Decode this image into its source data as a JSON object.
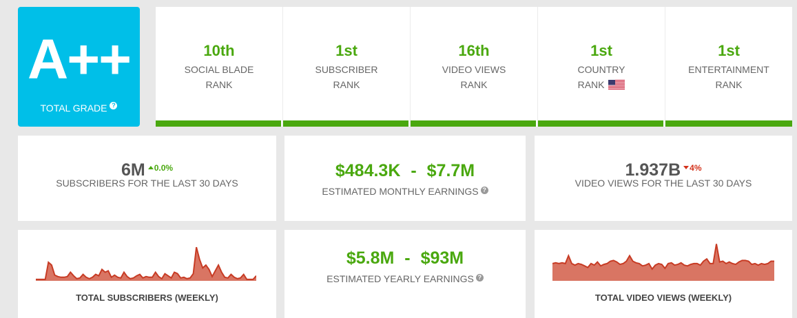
{
  "grade": {
    "value": "A++",
    "label": "TOTAL GRADE",
    "help_glyph": "?"
  },
  "ranks": [
    {
      "value": "10th",
      "line1": "SOCIAL BLADE",
      "line2": "RANK"
    },
    {
      "value": "1st",
      "line1": "SUBSCRIBER",
      "line2": "RANK"
    },
    {
      "value": "16th",
      "line1": "VIDEO VIEWS",
      "line2": "RANK"
    },
    {
      "value": "1st",
      "line1": "COUNTRY",
      "line2": "RANK",
      "flag_icon": "us-flag-icon"
    },
    {
      "value": "1st",
      "line1": "ENTERTAINMENT",
      "line2": "RANK"
    }
  ],
  "subscribers_30d": {
    "value": "6M",
    "change": "0.0%",
    "direction": "up",
    "label": "SUBSCRIBERS FOR THE LAST 30 DAYS"
  },
  "monthly_earnings": {
    "low": "$484.3K",
    "separator": "-",
    "high": "$7.7M",
    "label": "ESTIMATED MONTHLY EARNINGS"
  },
  "views_30d": {
    "value": "1.937B",
    "change": "4%",
    "direction": "down",
    "label": "VIDEO VIEWS FOR THE LAST 30 DAYS"
  },
  "yearly_earnings": {
    "low": "$5.8M",
    "separator": "-",
    "high": "$93M",
    "label": "ESTIMATED YEARLY EARNINGS"
  },
  "subscribers_chart": {
    "label": "TOTAL SUBSCRIBERS (WEEKLY)",
    "values": [
      2,
      2,
      2,
      2,
      26,
      22,
      8,
      6,
      5,
      5,
      6,
      12,
      7,
      3,
      4,
      9,
      5,
      3,
      5,
      9,
      7,
      16,
      12,
      14,
      5,
      8,
      5,
      4,
      12,
      6,
      3,
      4,
      7,
      9,
      4,
      6,
      5,
      5,
      12,
      6,
      3,
      10,
      7,
      4,
      12,
      10,
      4,
      5,
      3,
      4,
      10,
      47,
      30,
      18,
      22,
      16,
      6,
      14,
      22,
      12,
      5,
      4,
      9,
      5,
      3,
      4,
      9,
      2,
      2,
      2,
      7
    ],
    "fill": "#d97563",
    "stroke": "#c73b24"
  },
  "views_chart": {
    "label": "TOTAL VIDEO VIEWS (WEEKLY)",
    "values": [
      22,
      23,
      22,
      23,
      22,
      32,
      22,
      20,
      22,
      21,
      19,
      17,
      22,
      20,
      24,
      19,
      21,
      22,
      25,
      26,
      24,
      21,
      22,
      25,
      32,
      25,
      23,
      22,
      19,
      20,
      22,
      15,
      20,
      22,
      21,
      16,
      22,
      23,
      20,
      21,
      23,
      20,
      19,
      21,
      22,
      22,
      20,
      25,
      28,
      22,
      22,
      47,
      24,
      25,
      22,
      24,
      22,
      21,
      24,
      26,
      26,
      25,
      21,
      22,
      20,
      22,
      21,
      22,
      25,
      25
    ],
    "fill": "#d97563",
    "stroke": "#c73b24"
  }
}
